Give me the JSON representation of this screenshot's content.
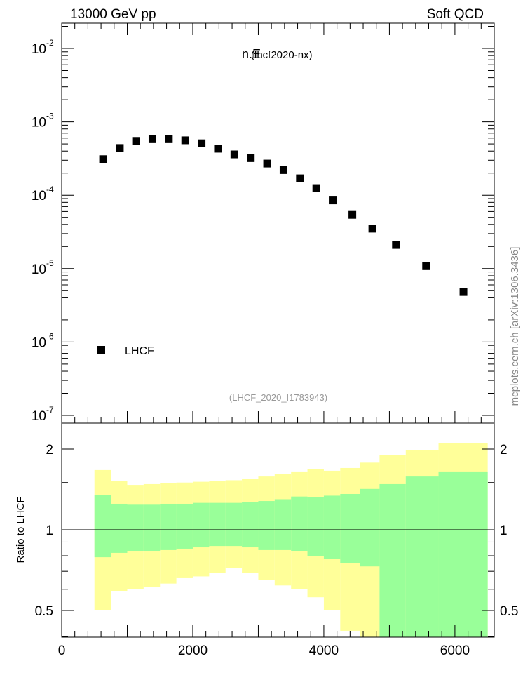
{
  "header": {
    "left": "13000 GeV pp",
    "right": "Soft QCD"
  },
  "chart_data": [
    {
      "type": "scatter",
      "title": "n.E",
      "subtitle": "(lhcf2020-nx)",
      "watermark": "(LHCF_2020_I1783943)",
      "side_label": "mcplots.cern.ch [arXiv:1306.3436]",
      "yscale": "log",
      "ylim": [
        1e-07,
        0.025
      ],
      "xlim": [
        0,
        6600
      ],
      "y_tick_labels": [
        "10",
        "10",
        "10",
        "10",
        "10",
        "10"
      ],
      "y_tick_exponents": [
        "-7",
        "-6",
        "-5",
        "-4",
        "-3",
        "-2"
      ],
      "y_tick_values": [
        1e-07,
        1e-06,
        1e-05,
        0.0001,
        0.001,
        0.01
      ],
      "legend": {
        "entries": [
          "LHCF"
        ],
        "position": "bottom-left"
      },
      "series": [
        {
          "name": "LHCF",
          "color": "#000000",
          "x": [
            632,
            887,
            1135,
            1385,
            1635,
            1885,
            2135,
            2385,
            2635,
            2885,
            3135,
            3385,
            3635,
            3885,
            4135,
            4435,
            4740,
            5100,
            5560,
            6130
          ],
          "y": [
            0.00031,
            0.00044,
            0.00055,
            0.00058,
            0.00058,
            0.00056,
            0.00051,
            0.00043,
            0.00036,
            0.00032,
            0.00027,
            0.00022,
            0.00017,
            0.000125,
            8.5e-05,
            5.4e-05,
            3.5e-05,
            2.1e-05,
            1.08e-05,
            4.8e-06
          ]
        }
      ]
    },
    {
      "type": "area",
      "ylabel": "Ratio to LHCF",
      "ylim": [
        0.35,
        2.3
      ],
      "xlim": [
        0,
        6600
      ],
      "y_tick_labels": [
        "0.5",
        "1",
        "2"
      ],
      "y_tick_values": [
        0.5,
        1,
        2
      ],
      "x_tick_labels": [
        "0",
        "2000",
        "4000",
        "6000"
      ],
      "x_tick_values": [
        0,
        2000,
        4000,
        6000
      ],
      "reference_line": 1,
      "bands": {
        "edges": [
          500,
          750,
          1000,
          1250,
          1500,
          1750,
          2000,
          2250,
          2500,
          2750,
          3000,
          3250,
          3500,
          3750,
          4000,
          4250,
          4550,
          4850,
          5250,
          5750,
          6500
        ],
        "inner": {
          "name": "stat",
          "color": "#99ff99",
          "upper": [
            1.35,
            1.25,
            1.24,
            1.24,
            1.25,
            1.25,
            1.26,
            1.26,
            1.26,
            1.27,
            1.28,
            1.3,
            1.33,
            1.32,
            1.34,
            1.36,
            1.42,
            1.48,
            1.58,
            1.65,
            1.78
          ],
          "lower": [
            0.79,
            0.82,
            0.83,
            0.83,
            0.84,
            0.85,
            0.86,
            0.87,
            0.87,
            0.86,
            0.84,
            0.84,
            0.83,
            0.8,
            0.78,
            0.75,
            0.73,
            0.3,
            0.3,
            0.3,
            0.3
          ]
        },
        "outer": {
          "name": "stat+syst",
          "color": "#ffff99",
          "upper": [
            1.67,
            1.52,
            1.47,
            1.48,
            1.49,
            1.5,
            1.51,
            1.52,
            1.53,
            1.55,
            1.58,
            1.61,
            1.65,
            1.68,
            1.66,
            1.7,
            1.78,
            1.9,
            1.98,
            2.1,
            2.28
          ],
          "lower": [
            0.5,
            0.59,
            0.6,
            0.61,
            0.63,
            0.66,
            0.67,
            0.69,
            0.72,
            0.69,
            0.65,
            0.62,
            0.6,
            0.56,
            0.5,
            0.42,
            0.35,
            0.3,
            0.3,
            0.3,
            0.3
          ]
        }
      }
    }
  ]
}
